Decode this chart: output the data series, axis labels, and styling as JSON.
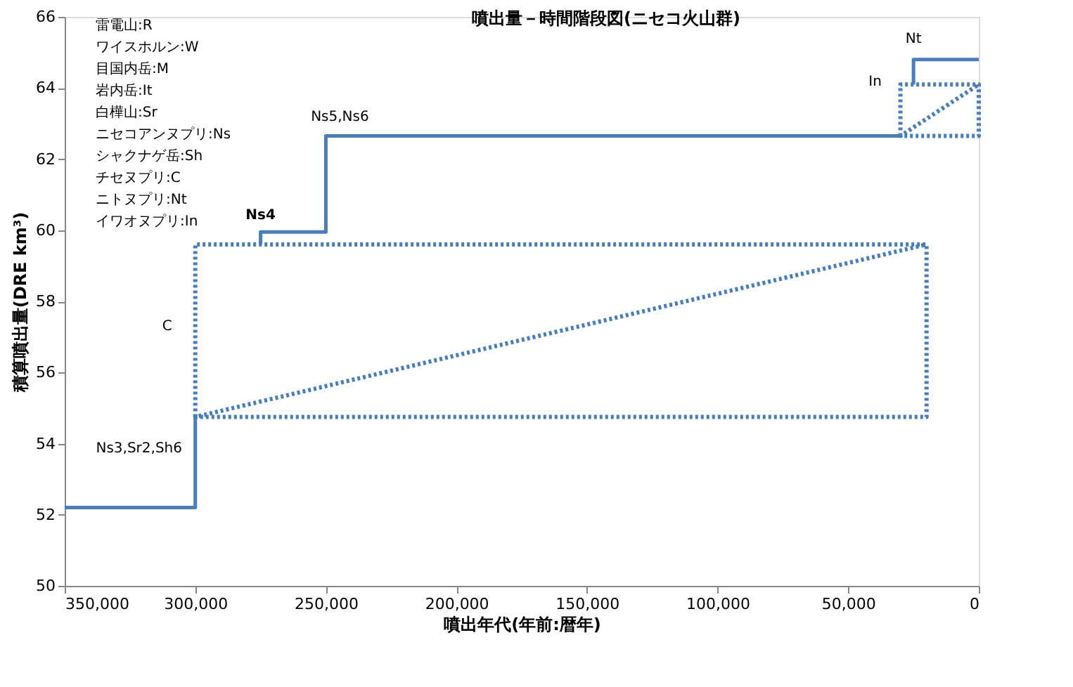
{
  "chart_data": {
    "type": "line",
    "title": "噴出量－時間階段図(ニセコ火山群)",
    "xlabel": "噴出年代(年前:暦年)",
    "ylabel": "積算噴出量(DRE km³)",
    "xlim": [
      350000,
      0
    ],
    "ylim": [
      50,
      66
    ],
    "xticks": [
      {
        "value": 350000,
        "label": "350,000"
      },
      {
        "value": 300000,
        "label": "300,000"
      },
      {
        "value": 250000,
        "label": "250,000"
      },
      {
        "value": 200000,
        "label": "200,000"
      },
      {
        "value": 150000,
        "label": "150,000"
      },
      {
        "value": 100000,
        "label": "100,000"
      },
      {
        "value": 50000,
        "label": "50,000"
      },
      0
    ],
    "yticks": [
      50,
      52,
      54,
      56,
      58,
      60,
      62,
      64,
      66
    ],
    "grid": false,
    "marker": "none",
    "series": [
      {
        "color": "#4a7ebb",
        "line_style": "solid",
        "x": [
          350000,
          300000,
          300000
        ],
        "values": [
          52.2,
          52.2,
          54.75
        ]
      },
      {
        "color": "#4a7ebb",
        "line_style": "solid",
        "x": [
          275000,
          275000,
          250000,
          250000,
          30000
        ],
        "values": [
          59.6,
          59.95,
          59.95,
          62.65,
          62.65
        ]
      },
      {
        "color": "#4a7ebb",
        "line_style": "solid",
        "x": [
          25000,
          25000,
          0
        ],
        "values": [
          64.1,
          64.8,
          64.8
        ]
      },
      {
        "color": "#4a7ebb",
        "line_style": "dotted",
        "x": [
          300000,
          300000,
          20000,
          20000,
          300000,
          20000
        ],
        "values": [
          54.75,
          59.6,
          59.6,
          54.75,
          54.75,
          59.6
        ]
      },
      {
        "color": "#4a7ebb",
        "line_style": "dotted",
        "x": [
          30000,
          30000,
          0,
          0,
          30000,
          0
        ],
        "values": [
          62.65,
          64.1,
          64.1,
          62.65,
          62.65,
          64.1
        ]
      }
    ],
    "annotations": [
      "雷電山:R",
      "ワイスホルン:W",
      "目国内岳:M",
      "岩内岳:It",
      "白樺山:Sr",
      "ニセコアンヌプリ:Ns",
      "シャクナゲ岳:Sh",
      "チセヌプリ:C",
      "ニトヌプリ:Nt",
      "イワオヌプリ:In",
      {
        "text": "Ns3,Sr2,Sh6",
        "x": 300000,
        "y": 54.75
      },
      {
        "text": "C",
        "x": 300000,
        "y": 57.3
      },
      {
        "text": "Ns4",
        "x": 275000,
        "y": 59.95
      },
      {
        "text": "Ns5,Ns6",
        "x": 250000,
        "y": 62.65
      },
      {
        "text": "In",
        "x": 30000,
        "y": 64.1
      },
      {
        "text": "Nt",
        "x": 25000,
        "y": 64.8
      }
    ]
  }
}
